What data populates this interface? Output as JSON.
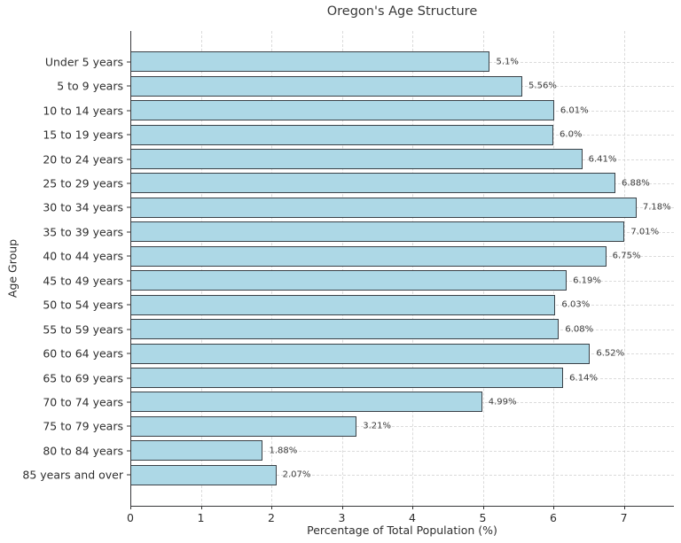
{
  "figure": {
    "title": "Oregon's Age Structure"
  },
  "chart_data": {
    "type": "bar",
    "orientation": "horizontal",
    "title": "Oregon's Age Structure",
    "xlabel": "Percentage of Total Population (%)",
    "ylabel": "Age Group",
    "categories": [
      "Under 5 years",
      "5 to 9 years",
      "10 to 14 years",
      "15 to 19 years",
      "20 to 24 years",
      "25 to 29 years",
      "30 to 34 years",
      "35 to 39 years",
      "40 to 44 years",
      "45 to 49 years",
      "50 to 54 years",
      "55 to 59 years",
      "60 to 64 years",
      "65 to 69 years",
      "70 to 74 years",
      "75 to 79 years",
      "80 to 84 years",
      "85 years and over"
    ],
    "values": [
      5.1,
      5.56,
      6.01,
      6.0,
      6.41,
      6.88,
      7.18,
      7.01,
      6.75,
      6.19,
      6.03,
      6.08,
      6.52,
      6.14,
      4.99,
      3.21,
      1.88,
      2.07
    ],
    "bar_labels": [
      "5.1%",
      "5.56%",
      "6.01%",
      "6.0%",
      "6.41%",
      "6.88%",
      "7.18%",
      "7.01%",
      "6.75%",
      "6.19%",
      "6.03%",
      "6.08%",
      "6.52%",
      "6.14%",
      "4.99%",
      "3.21%",
      "1.88%",
      "2.07%"
    ],
    "x_ticks": [
      0,
      1,
      2,
      3,
      4,
      5,
      6,
      7
    ],
    "xlim": [
      0,
      7.71
    ],
    "grid": "dashed-both-axes",
    "legend": "none",
    "bar_color": "#ADD8E6",
    "bar_edge_color": "#3a4147",
    "grid_color": "#c8c8c8",
    "text_color": "#2e2e2e"
  }
}
